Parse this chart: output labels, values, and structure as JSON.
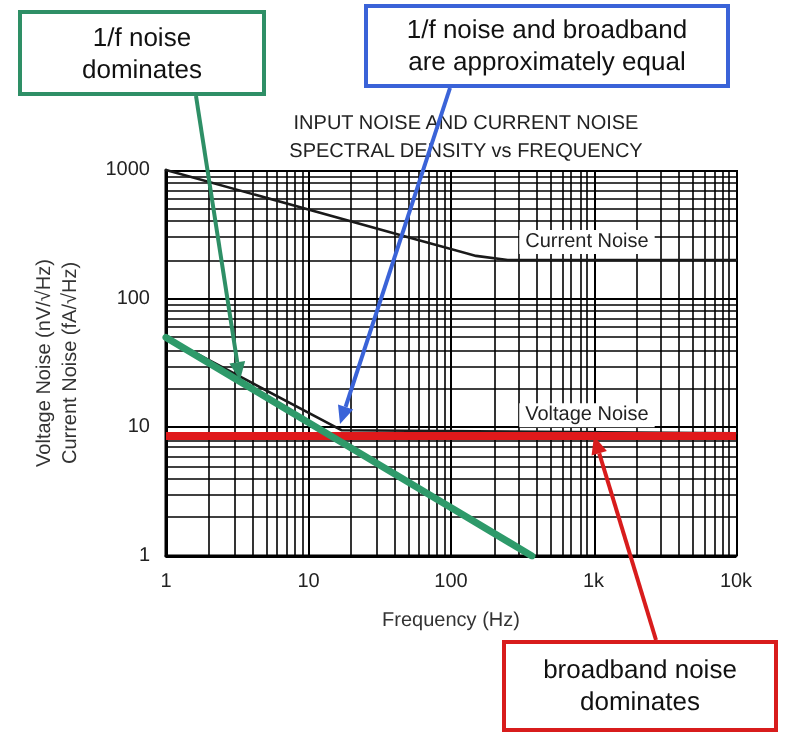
{
  "chart_data": {
    "type": "line",
    "title": "INPUT NOISE AND CURRENT NOISE\nSPECTRAL DENSITY vs FREQUENCY",
    "xlabel": "Frequency (Hz)",
    "ylabel": "Voltage Noise (nV/√Hz)\nCurrent Noise (fA/√Hz)",
    "log": "xy",
    "xlim": [
      1,
      10000
    ],
    "ylim": [
      1,
      1000
    ],
    "xticks": [
      1,
      10,
      100,
      {
        "value": 1000,
        "label": "1k"
      },
      {
        "value": 10000,
        "label": "10k"
      }
    ],
    "yticks": [
      1,
      10,
      100,
      1000
    ],
    "grid": true,
    "marker": "none",
    "line_style": "solid",
    "series": [
      {
        "color": "#1a1a1a",
        "x": [
          1,
          50,
          150,
          250,
          10000
        ],
        "values": [
          1000,
          300,
          215,
          200,
          200
        ]
      },
      {
        "color": "#1a1a1a",
        "x": [
          1,
          17,
          10000
        ],
        "values": [
          50,
          9.5,
          9
        ]
      },
      {
        "color": "#2e9a6a",
        "x": [
          1,
          370
        ],
        "values": [
          50,
          1
        ]
      }
    ],
    "ref_lines": [
      {
        "axis": "y",
        "value": 8.5,
        "label": null,
        "color": "#e0191b"
      }
    ],
    "annotations": [
      "1/f noise\ndominates",
      "1/f noise and broadband\nare approximately equal",
      "broadband noise\ndominates",
      {
        "text": "Current Noise",
        "x": 900,
        "y": 200
      },
      {
        "text": "Voltage Noise",
        "x": 900,
        "y": 9
      }
    ]
  }
}
